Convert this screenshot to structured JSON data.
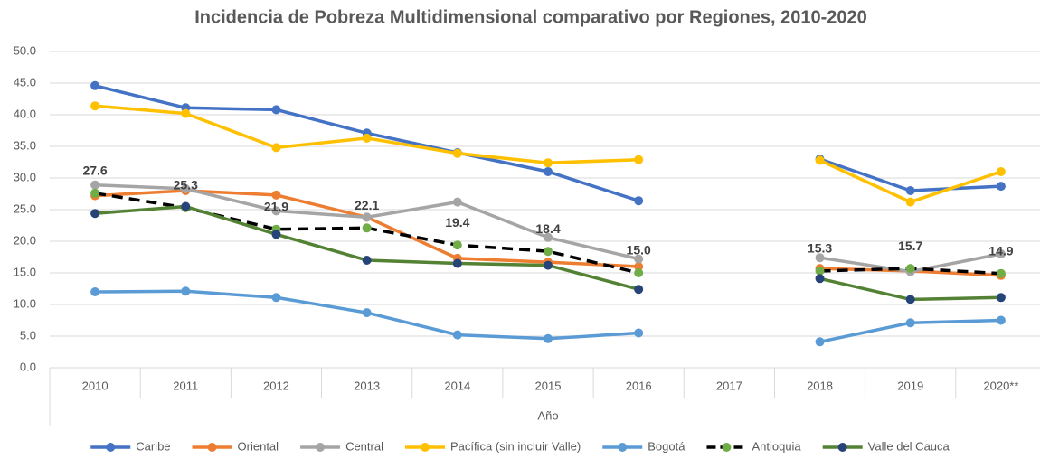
{
  "chart_data": {
    "type": "line",
    "title": "Incidencia de Pobreza Multidimensional comparativo por Regiones, 2010-2020",
    "x_label": "Año",
    "categories": [
      "2010",
      "2011",
      "2012",
      "2013",
      "2014",
      "2015",
      "2016",
      "2017",
      "2018",
      "2019",
      "2020**"
    ],
    "ylim": [
      0,
      50
    ],
    "yticks": [
      {
        "value": 0,
        "label": "0.0"
      },
      {
        "value": 5,
        "label": "5.0"
      },
      {
        "value": 10,
        "label": "10.0"
      },
      {
        "value": 15,
        "label": "15.0"
      },
      {
        "value": 20,
        "label": "20.0"
      },
      {
        "value": 25,
        "label": "25.0"
      },
      {
        "value": 30,
        "label": "30.0"
      },
      {
        "value": 35,
        "label": "35.0"
      },
      {
        "value": 40,
        "label": "40.0"
      },
      {
        "value": 45,
        "label": "45.0"
      },
      {
        "value": 50,
        "label": "50.0"
      }
    ],
    "grid": true,
    "legend": "bottom",
    "series": [
      {
        "name": "Caribe",
        "color": "#4472c4",
        "values": [
          44.6,
          41.1,
          40.8,
          37.1,
          34.0,
          31.0,
          26.4,
          null,
          33.0,
          28.0,
          28.7
        ]
      },
      {
        "name": "Oriental",
        "color": "#ed7d31",
        "values": [
          27.2,
          28.0,
          27.3,
          23.8,
          17.3,
          16.7,
          16.0,
          null,
          15.7,
          15.3,
          14.6
        ]
      },
      {
        "name": "Central",
        "color": "#a5a5a5",
        "values": [
          28.9,
          28.3,
          24.8,
          23.8,
          26.2,
          20.6,
          17.2,
          null,
          17.4,
          15.2,
          18.0
        ]
      },
      {
        "name": "Pacífica (sin incluir Valle)",
        "color": "#ffc000",
        "values": [
          41.4,
          40.2,
          34.8,
          36.3,
          33.9,
          32.4,
          32.9,
          null,
          32.8,
          26.2,
          31.0
        ]
      },
      {
        "name": "Bogotá",
        "color": "#5b9bd5",
        "values": [
          12.0,
          12.1,
          11.1,
          8.7,
          5.2,
          4.6,
          5.5,
          null,
          4.1,
          7.1,
          7.5
        ]
      },
      {
        "name": "Antioquia",
        "color": "#000000",
        "marker_color": "#70ad47",
        "dashed": true,
        "values": [
          27.6,
          25.3,
          21.9,
          22.1,
          19.4,
          18.4,
          15.0,
          null,
          15.3,
          15.7,
          14.9
        ],
        "value_labels": [
          "27.6",
          "25.3",
          "21.9",
          "22.1",
          "19.4",
          "18.4",
          "15.0",
          null,
          "15.3",
          "15.7",
          "14.9"
        ]
      },
      {
        "name": "Valle del Cauca",
        "color": "#548235",
        "marker_color": "#264478",
        "values": [
          24.4,
          25.5,
          21.1,
          17.0,
          16.5,
          16.2,
          12.4,
          null,
          14.1,
          10.8,
          11.1
        ]
      }
    ]
  }
}
